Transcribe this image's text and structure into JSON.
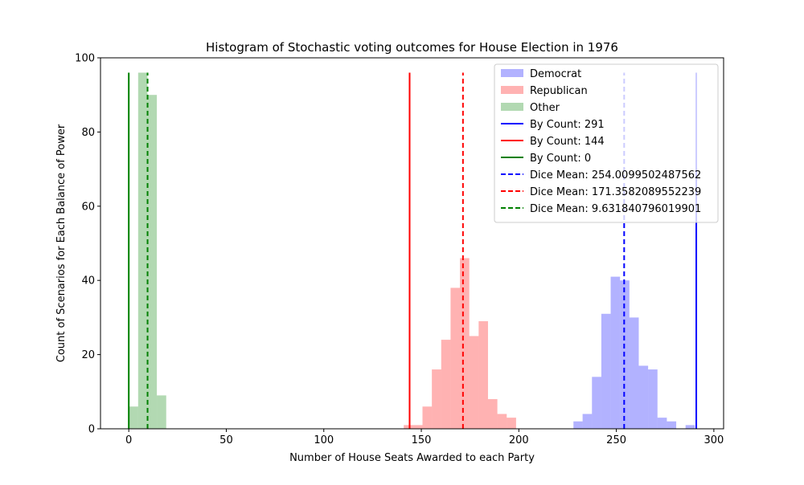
{
  "chart_data": {
    "type": "bar",
    "title": "Histogram of Stochastic voting outcomes for House Election in 1976",
    "xlabel": "Number of House Seats Awarded to each Party",
    "ylabel": "Count of Scenarios for Each Balance of Power",
    "xlim": [
      -14.5,
      305
    ],
    "ylim": [
      0,
      100
    ],
    "xticks": [
      0,
      50,
      100,
      150,
      200,
      250,
      300
    ],
    "yticks": [
      0,
      20,
      40,
      60,
      80,
      100
    ],
    "grid": false,
    "legend_position": "top-right",
    "series": [
      {
        "name": "Democrat",
        "color": "#0000ff",
        "alpha": 0.3,
        "bins": [
          {
            "x0": 228,
            "x1": 232.7,
            "count": 2
          },
          {
            "x0": 232.7,
            "x1": 237.5,
            "count": 4
          },
          {
            "x0": 237.5,
            "x1": 242.3,
            "count": 14
          },
          {
            "x0": 242.3,
            "x1": 247.1,
            "count": 31
          },
          {
            "x0": 247.1,
            "x1": 251.9,
            "count": 41
          },
          {
            "x0": 251.9,
            "x1": 256.7,
            "count": 40
          },
          {
            "x0": 256.7,
            "x1": 261.5,
            "count": 30
          },
          {
            "x0": 261.5,
            "x1": 266.3,
            "count": 17
          },
          {
            "x0": 266.3,
            "x1": 271.1,
            "count": 16
          },
          {
            "x0": 271.1,
            "x1": 275.9,
            "count": 3
          },
          {
            "x0": 275.9,
            "x1": 280.7,
            "count": 2
          },
          {
            "x0": 285.5,
            "x1": 290.3,
            "count": 1
          }
        ]
      },
      {
        "name": "Republican",
        "color": "#ff0000",
        "alpha": 0.3,
        "bins": [
          {
            "x0": 141,
            "x1": 145.8,
            "count": 1
          },
          {
            "x0": 145.8,
            "x1": 150.6,
            "count": 1
          },
          {
            "x0": 150.6,
            "x1": 155.4,
            "count": 6
          },
          {
            "x0": 155.4,
            "x1": 160.2,
            "count": 16
          },
          {
            "x0": 160.2,
            "x1": 165,
            "count": 24
          },
          {
            "x0": 165,
            "x1": 169.8,
            "count": 38
          },
          {
            "x0": 169.8,
            "x1": 174.6,
            "count": 46
          },
          {
            "x0": 174.6,
            "x1": 179.4,
            "count": 25
          },
          {
            "x0": 179.4,
            "x1": 184.2,
            "count": 29
          },
          {
            "x0": 184.2,
            "x1": 189,
            "count": 8
          },
          {
            "x0": 189,
            "x1": 193.8,
            "count": 4
          },
          {
            "x0": 193.8,
            "x1": 198.6,
            "count": 3
          }
        ]
      },
      {
        "name": "Other",
        "color": "#008000",
        "alpha": 0.3,
        "bins": [
          {
            "x0": 0,
            "x1": 4.8,
            "count": 6
          },
          {
            "x0": 4.8,
            "x1": 9.6,
            "count": 96
          },
          {
            "x0": 9.6,
            "x1": 14.4,
            "count": 90
          },
          {
            "x0": 14.4,
            "x1": 19.2,
            "count": 9
          }
        ]
      }
    ],
    "lines": [
      {
        "label": "By Count: 291",
        "x": 291,
        "ymax": 96,
        "color": "#0000ff",
        "style": "solid"
      },
      {
        "label": "By Count: 144",
        "x": 144,
        "ymax": 96,
        "color": "#ff0000",
        "style": "solid"
      },
      {
        "label": "By Count: 0",
        "x": 0,
        "ymax": 96,
        "color": "#008000",
        "style": "solid"
      },
      {
        "label": "Dice Mean: 254.0099502487562",
        "x": 254.0099502487562,
        "ymax": 96,
        "color": "#0000ff",
        "style": "dashed"
      },
      {
        "label": "Dice Mean: 171.3582089552239",
        "x": 171.3582089552239,
        "ymax": 96,
        "color": "#ff0000",
        "style": "dashed"
      },
      {
        "label": "Dice Mean: 9.631840796019901",
        "x": 9.631840796019901,
        "ymax": 96,
        "color": "#008000",
        "style": "dashed"
      }
    ]
  }
}
